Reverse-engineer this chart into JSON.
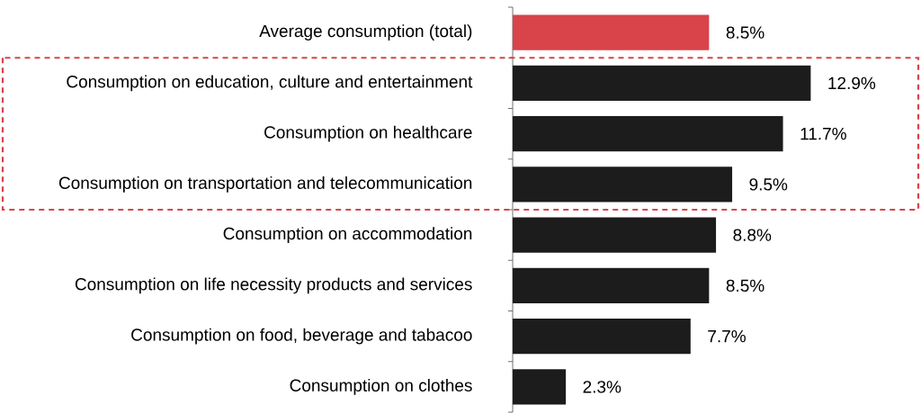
{
  "chart_data": {
    "type": "bar",
    "orientation": "horizontal",
    "categories": [
      "Average consumption (total)",
      "Consumption on education, culture and entertainment",
      "Consumption on healthcare",
      "Consumption on transportation and telecommunication",
      "Consumption on accommodation",
      "Consumption on life necessity products and services",
      "Consumption on food, beverage and tabacoo",
      "Consumption on clothes"
    ],
    "values": [
      8.5,
      12.9,
      11.7,
      9.5,
      8.8,
      8.5,
      7.7,
      2.3
    ],
    "colors": [
      "#d9434a",
      "#1c1c1c",
      "#1c1c1c",
      "#1c1c1c",
      "#1c1c1c",
      "#1c1c1c",
      "#1c1c1c",
      "#1c1c1c"
    ],
    "value_labels": [
      "8.5%",
      "12.9%",
      "11.7%",
      "9.5%",
      "8.8%",
      "8.5%",
      "7.7%",
      "2.3%"
    ]
  }
}
